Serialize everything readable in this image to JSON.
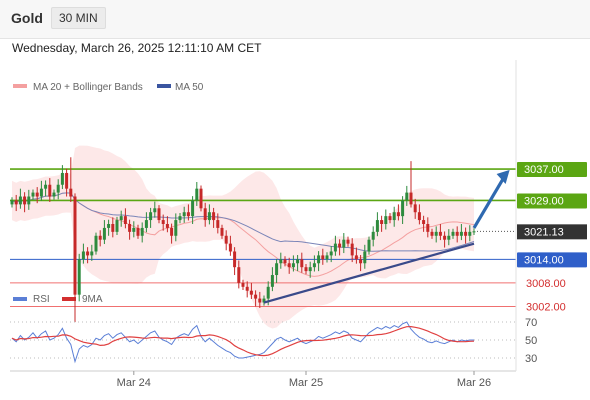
{
  "header": {
    "symbol": "Gold",
    "timeframe": "30 MIN",
    "datetime": "Wednesday, March 26, 2025 12:11:10 AM CET"
  },
  "legend": {
    "ma20": "MA 20 + Bollinger Bands",
    "ma50": "MA 50",
    "rsi": "RSI",
    "ma9": "9MA"
  },
  "colors": {
    "candle_up": "#2e8b3e",
    "candle_down": "#c62828",
    "green_level": "#5ba613",
    "blue_level": "#2f5fc9",
    "red_level": "#f07070",
    "trend": "#3a4a8a",
    "ma20": "#f4a0a0",
    "ma50": "#7a85b8",
    "bollinger_fill": "#fde4e4",
    "arrow": "#2f69b0",
    "current_price_bg": "#333333",
    "rsi_line": "#5b7fd6",
    "rsi_ma": "#e04040"
  },
  "chart_data": {
    "type": "candlestick",
    "x_axis_labels": [
      "Mar 24",
      "Mar 25",
      "Mar 26"
    ],
    "price_axis_range": [
      2996,
      3050
    ],
    "rsi_axis_ticks": [
      70,
      50,
      30
    ],
    "rsi_range": [
      20,
      80
    ],
    "current_price": "3021.13",
    "levels": [
      {
        "label": "3037.00",
        "value": 3037.0,
        "kind": "resistance",
        "color": "green"
      },
      {
        "label": "3029.00",
        "value": 3029.0,
        "kind": "resistance",
        "color": "green"
      },
      {
        "label": "3014.00",
        "value": 3014.0,
        "kind": "pivot",
        "color": "blue"
      },
      {
        "label": "3008.00",
        "value": 3008.0,
        "kind": "support",
        "color": "red"
      },
      {
        "label": "3002.00",
        "value": 3002.0,
        "kind": "support",
        "color": "red"
      }
    ],
    "trendline": {
      "from_index": 60,
      "from_price": 3003,
      "to_index": 110,
      "to_price": 3018
    },
    "forecast_arrow": {
      "from_index": 110,
      "from_price": 3022,
      "to_index": 118,
      "to_price": 3036
    },
    "closes": [
      3029,
      3028,
      3030,
      3028,
      3030,
      3031,
      3030,
      3032,
      3033,
      3030,
      3031,
      3033,
      3036,
      3032,
      3030,
      3005,
      3014,
      3016,
      3015,
      3016,
      3020,
      3019,
      3022,
      3023,
      3021,
      3024,
      3025,
      3023,
      3021,
      3022,
      3020,
      3022,
      3024,
      3026,
      3027,
      3024,
      3023,
      3022,
      3020,
      3024,
      3025,
      3026,
      3025,
      3029,
      3032,
      3027,
      3024,
      3026,
      3024,
      3022,
      3020,
      3018,
      3016,
      3012,
      3008,
      3007,
      3006,
      3005,
      3004,
      3003,
      3004,
      3007,
      3010,
      3013,
      3014,
      3013,
      3012,
      3013,
      3014,
      3012,
      3011,
      3012,
      3013,
      3015,
      3014,
      3015,
      3016,
      3018,
      3017,
      3019,
      3018,
      3015,
      3014,
      3013,
      3016,
      3019,
      3021,
      3024,
      3023,
      3025,
      3024,
      3026,
      3025,
      3029,
      3031,
      3028,
      3026,
      3024,
      3023,
      3021,
      3020,
      3021,
      3020,
      3019,
      3020,
      3021,
      3020,
      3021,
      3020,
      3021,
      3021.13
    ],
    "rsi": [
      52,
      48,
      55,
      50,
      53,
      58,
      52,
      57,
      60,
      50,
      52,
      56,
      63,
      52,
      45,
      26,
      40,
      44,
      42,
      45,
      52,
      50,
      55,
      57,
      52,
      56,
      58,
      53,
      48,
      50,
      46,
      50,
      54,
      58,
      60,
      53,
      50,
      48,
      45,
      52,
      55,
      57,
      55,
      62,
      66,
      54,
      48,
      52,
      48,
      44,
      41,
      38,
      36,
      32,
      30,
      30,
      31,
      32,
      33,
      34,
      36,
      41,
      46,
      51,
      53,
      50,
      48,
      50,
      52,
      48,
      46,
      48,
      50,
      54,
      52,
      54,
      56,
      59,
      57,
      60,
      58,
      52,
      50,
      48,
      53,
      58,
      61,
      64,
      62,
      65,
      63,
      66,
      64,
      68,
      70,
      62,
      57,
      53,
      51,
      48,
      47,
      49,
      47,
      46,
      48,
      50,
      48,
      50,
      49,
      50,
      50
    ]
  }
}
